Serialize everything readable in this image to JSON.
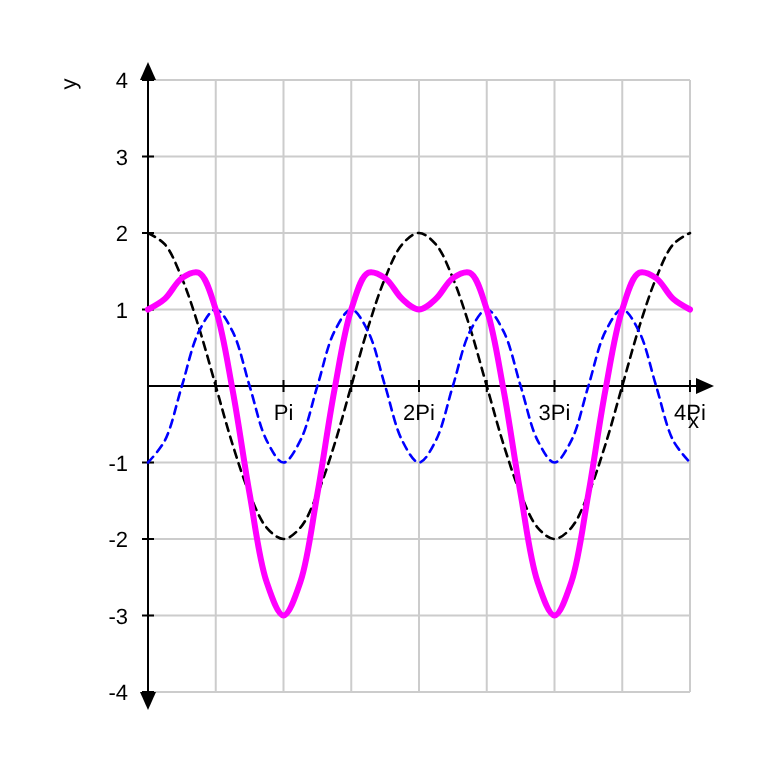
{
  "chart_data": {
    "type": "line",
    "xlabel": "x",
    "ylabel": "y",
    "x": [
      0,
      0.125,
      0.25,
      0.375,
      0.5,
      0.625,
      0.75,
      0.875,
      1,
      1.125,
      1.25,
      1.375,
      1.5,
      1.625,
      1.75,
      1.875,
      2,
      2.125,
      2.25,
      2.375,
      2.5,
      2.625,
      2.75,
      2.875,
      3,
      3.125,
      3.25,
      3.375,
      3.5,
      3.625,
      3.75,
      3.875,
      4
    ],
    "series": [
      {
        "color": "#000000",
        "line_style": "dashed",
        "values": [
          2,
          1.85,
          1.41,
          0.77,
          0,
          -0.77,
          -1.41,
          -1.85,
          -2,
          -1.85,
          -1.41,
          -0.77,
          0,
          0.77,
          1.41,
          1.85,
          2,
          1.85,
          1.41,
          0.77,
          0,
          -0.77,
          -1.41,
          -1.85,
          -2,
          -1.85,
          -1.41,
          -0.77,
          0,
          0.77,
          1.41,
          1.85,
          2
        ]
      },
      {
        "color": "#0000ff",
        "line_style": "dashed",
        "values": [
          -1,
          -0.71,
          0,
          0.71,
          1,
          0.71,
          0,
          -0.71,
          -1,
          -0.71,
          0,
          0.71,
          1,
          0.71,
          0,
          -0.71,
          -1,
          -0.71,
          0,
          0.71,
          1,
          0.71,
          0,
          -0.71,
          -1,
          -0.71,
          0,
          0.71,
          1,
          0.71,
          0,
          -0.71,
          -1
        ]
      },
      {
        "color": "#ff00ff",
        "line_style": "solid",
        "values": [
          1,
          1.14,
          1.41,
          1.48,
          1,
          -0.06,
          -1.41,
          -2.56,
          -3,
          -2.56,
          -1.41,
          -0.06,
          1,
          1.48,
          1.41,
          1.14,
          1,
          1.14,
          1.41,
          1.48,
          1,
          -0.06,
          -1.41,
          -2.56,
          -3,
          -2.56,
          -1.41,
          -0.06,
          1,
          1.48,
          1.41,
          1.14,
          1
        ]
      }
    ],
    "xlim": [
      0,
      4
    ],
    "ylim": [
      -4,
      4
    ],
    "xticks": [
      {
        "value": 0.5,
        "label": null
      },
      {
        "value": 1,
        "label": "Pi"
      },
      {
        "value": 1.5,
        "label": null
      },
      {
        "value": 2,
        "label": "2Pi"
      },
      {
        "value": 2.5,
        "label": null
      },
      {
        "value": 3,
        "label": "3Pi"
      },
      {
        "value": 3.5,
        "label": null
      },
      {
        "value": 4,
        "label": "4Pi"
      }
    ],
    "yticks": [
      -4,
      -3,
      -2,
      -1,
      1,
      2,
      3,
      4
    ],
    "grid": true,
    "marker": "none"
  }
}
